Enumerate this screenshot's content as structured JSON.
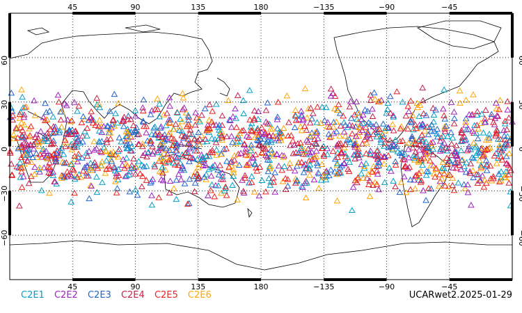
{
  "caption": "UCARwet2.2025-01-29",
  "lon_ticks": [
    {
      "lon": 45,
      "label": "45"
    },
    {
      "lon": 90,
      "label": "90"
    },
    {
      "lon": 135,
      "label": "135"
    },
    {
      "lon": 180,
      "label": "180"
    },
    {
      "lon": 225,
      "label": "−135"
    },
    {
      "lon": 270,
      "label": "−90"
    },
    {
      "lon": 315,
      "label": "−45"
    }
  ],
  "lat_ticks": [
    {
      "lat": 60,
      "label": "60"
    },
    {
      "lat": 30,
      "label": "30"
    },
    {
      "lat": 0,
      "label": "0"
    },
    {
      "lat": -30,
      "label": "−30"
    },
    {
      "lat": -60,
      "label": "−60"
    }
  ],
  "lon_range": [
    0,
    360
  ],
  "lat_range": [
    -90,
    90
  ],
  "grid": "dotted",
  "marker": "triangle-open",
  "series": [
    {
      "name": "C2E1",
      "color": "#00a0c8"
    },
    {
      "name": "C2E2",
      "color": "#a020c0"
    },
    {
      "name": "C2E3",
      "color": "#1e64d2"
    },
    {
      "name": "C2E4",
      "color": "#c81e46"
    },
    {
      "name": "C2E5",
      "color": "#f01e1e"
    },
    {
      "name": "C2E6",
      "color": "#ffa500"
    }
  ],
  "coverage": {
    "lat_min": -45,
    "lat_max": 45
  }
}
